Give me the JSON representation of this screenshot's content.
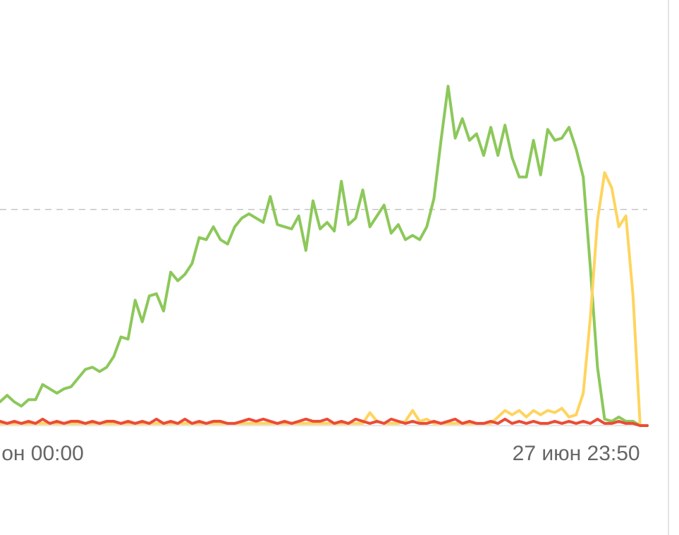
{
  "chart_data": {
    "type": "line",
    "categories": [
      null,
      null,
      null,
      null,
      null,
      null,
      "он 00:00",
      null,
      null,
      null,
      null,
      null,
      null,
      null,
      null,
      null,
      null,
      null,
      null,
      null,
      null,
      null,
      null,
      null,
      null,
      null,
      null,
      null,
      null,
      null,
      null,
      null,
      null,
      null,
      null,
      null,
      null,
      null,
      null,
      null,
      null,
      null,
      null,
      null,
      null,
      null,
      null,
      null,
      null,
      null,
      null,
      null,
      null,
      null,
      null,
      null,
      null,
      null,
      null,
      null,
      null,
      null,
      null,
      null,
      null,
      null,
      null,
      null,
      null,
      null,
      null,
      null,
      null,
      null,
      null,
      null,
      null,
      null,
      null,
      null,
      null,
      "27 июн 23:50",
      null,
      null,
      null,
      null,
      null,
      null,
      null,
      null,
      null,
      null
    ],
    "series": [
      {
        "color": "#8cc85a",
        "values": [
          11,
          14,
          11,
          9,
          12,
          12,
          19,
          17,
          15,
          17,
          18,
          22,
          26,
          27,
          25,
          27,
          32,
          41,
          40,
          58,
          48,
          60,
          61,
          53,
          71,
          67,
          70,
          75,
          87,
          86,
          92,
          86,
          84,
          92,
          96,
          98,
          96,
          94,
          106,
          93,
          92,
          91,
          97,
          81,
          104,
          91,
          94,
          90,
          113,
          93,
          96,
          109,
          92,
          97,
          102,
          89,
          93,
          86,
          88,
          86,
          92,
          105,
          132,
          157,
          133,
          142,
          132,
          135,
          125,
          138,
          125,
          139,
          124,
          115,
          115,
          132,
          116,
          137,
          132,
          133,
          138,
          128,
          115,
          73,
          27,
          3,
          2,
          4,
          2,
          2,
          0,
          0
        ]
      },
      {
        "color": "#ffd45e",
        "values": [
          1,
          1,
          1,
          1,
          1,
          1,
          1,
          1,
          1,
          1,
          1,
          1,
          1,
          1,
          1,
          1,
          1,
          1,
          1,
          1,
          1,
          1,
          1,
          1,
          1,
          1,
          1,
          1,
          1,
          1,
          1,
          1,
          1,
          1,
          1,
          1,
          1,
          1,
          1,
          1,
          1,
          1,
          1,
          1,
          1,
          1,
          1,
          1,
          1,
          1,
          1,
          1,
          6,
          2,
          1,
          1,
          1,
          2,
          7,
          2,
          3,
          1,
          1,
          1,
          1,
          1,
          1,
          1,
          1,
          1,
          4,
          7,
          5,
          7,
          4,
          7,
          5,
          7,
          6,
          8,
          4,
          5,
          15,
          50,
          95,
          117,
          110,
          92,
          97,
          60,
          0,
          0
        ]
      },
      {
        "color": "#eb4b36",
        "values": [
          2,
          1,
          2,
          1,
          2,
          1,
          3,
          1,
          2,
          1,
          2,
          2,
          1,
          2,
          1,
          2,
          2,
          1,
          2,
          1,
          2,
          1,
          3,
          1,
          2,
          1,
          3,
          1,
          2,
          1,
          2,
          2,
          1,
          1,
          2,
          3,
          2,
          3,
          2,
          1,
          2,
          1,
          2,
          3,
          2,
          2,
          3,
          1,
          2,
          1,
          3,
          2,
          1,
          2,
          1,
          3,
          2,
          1,
          2,
          1,
          1,
          2,
          1,
          2,
          3,
          1,
          2,
          1,
          1,
          2,
          1,
          3,
          1,
          2,
          1,
          2,
          1,
          1,
          2,
          1,
          2,
          1,
          2,
          1,
          3,
          1,
          1,
          2,
          1,
          1,
          0,
          0
        ]
      }
    ],
    "ylim": [
      0,
      160
    ],
    "reference_line": 100
  }
}
